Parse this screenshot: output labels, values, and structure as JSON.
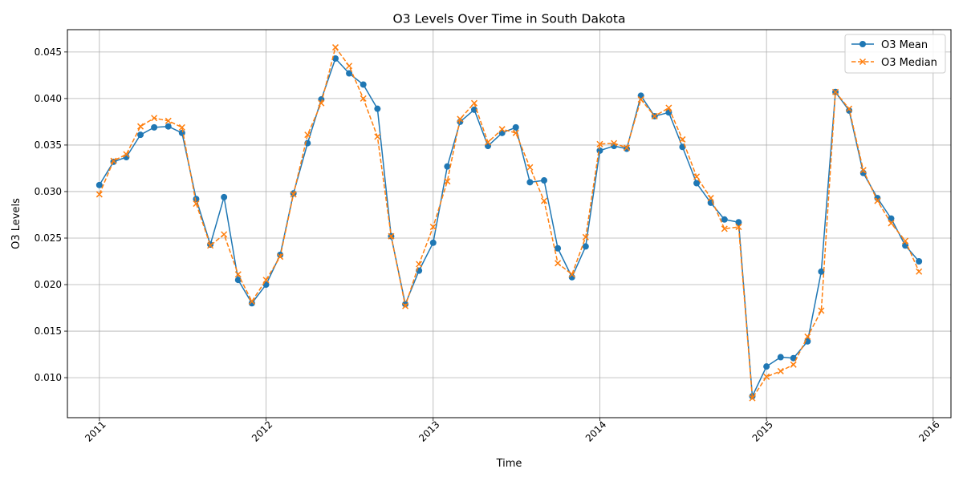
{
  "chart_data": {
    "type": "line",
    "title": "O3 Levels Over Time in South Dakota",
    "xlabel": "Time",
    "ylabel": "O3 Levels",
    "x_ticks": [
      "2011",
      "2012",
      "2013",
      "2014",
      "2015",
      "2016"
    ],
    "y_ticks": [
      "0.010",
      "0.015",
      "0.020",
      "0.025",
      "0.030",
      "0.035",
      "0.040",
      "0.045"
    ],
    "ylim": [
      0.0057,
      0.0474
    ],
    "xlim": [
      "2010-10-23",
      "2016-02-09"
    ],
    "grid": true,
    "legend_position": "top-right",
    "x": [
      "2011-01",
      "2011-02",
      "2011-03",
      "2011-04",
      "2011-05",
      "2011-06",
      "2011-07",
      "2011-08",
      "2011-09",
      "2011-10",
      "2011-11",
      "2011-12",
      "2012-01",
      "2012-02",
      "2012-03",
      "2012-04",
      "2012-05",
      "2012-06",
      "2012-07",
      "2012-08",
      "2012-09",
      "2012-10",
      "2012-11",
      "2012-12",
      "2013-01",
      "2013-02",
      "2013-03",
      "2013-04",
      "2013-05",
      "2013-06",
      "2013-07",
      "2013-08",
      "2013-09",
      "2013-10",
      "2013-11",
      "2013-12",
      "2014-01",
      "2014-02",
      "2014-03",
      "2014-04",
      "2014-05",
      "2014-06",
      "2014-07",
      "2014-08",
      "2014-09",
      "2014-10",
      "2014-11",
      "2014-12",
      "2015-01",
      "2015-02",
      "2015-03",
      "2015-04",
      "2015-05",
      "2015-06",
      "2015-07",
      "2015-08",
      "2015-09",
      "2015-10",
      "2015-11",
      "2015-12"
    ],
    "series": [
      {
        "name": "O3 Mean",
        "color": "#1f77b4",
        "linestyle": "solid",
        "marker": "circle",
        "values": [
          0.0307,
          0.0332,
          0.0337,
          0.0361,
          0.0369,
          0.037,
          0.0363,
          0.0292,
          0.0243,
          0.0294,
          0.0205,
          0.018,
          0.02,
          0.0232,
          0.0298,
          0.0352,
          0.0399,
          0.0443,
          0.0427,
          0.0415,
          0.0389,
          0.0252,
          0.0179,
          0.0215,
          0.0245,
          0.0327,
          0.0375,
          0.0388,
          0.0349,
          0.0363,
          0.0369,
          0.031,
          0.0312,
          0.0239,
          0.0208,
          0.0241,
          0.0344,
          0.0349,
          0.0346,
          0.0403,
          0.0381,
          0.0385,
          0.0348,
          0.0309,
          0.0288,
          0.027,
          0.0267,
          0.008,
          0.0112,
          0.0122,
          0.0121,
          0.0139,
          0.0214,
          0.0407,
          0.0387,
          0.032,
          0.0293,
          0.0271,
          0.0242,
          0.0225
        ]
      },
      {
        "name": "O3 Median",
        "color": "#ff7f0e",
        "linestyle": "dashed",
        "marker": "x",
        "values": [
          0.0297,
          0.0333,
          0.034,
          0.037,
          0.0379,
          0.0376,
          0.0369,
          0.0287,
          0.0242,
          0.0254,
          0.0211,
          0.0182,
          0.0205,
          0.023,
          0.0297,
          0.0361,
          0.0395,
          0.0455,
          0.0435,
          0.04,
          0.0359,
          0.0252,
          0.0177,
          0.0222,
          0.0262,
          0.0311,
          0.0378,
          0.0395,
          0.0353,
          0.0367,
          0.0363,
          0.0326,
          0.029,
          0.0223,
          0.0211,
          0.0251,
          0.0351,
          0.0352,
          0.0347,
          0.0399,
          0.0381,
          0.039,
          0.0356,
          0.0316,
          0.0293,
          0.026,
          0.0262,
          0.0078,
          0.0101,
          0.0107,
          0.0114,
          0.0144,
          0.0172,
          0.0407,
          0.0389,
          0.0323,
          0.029,
          0.0266,
          0.0247,
          0.0214
        ]
      }
    ]
  }
}
